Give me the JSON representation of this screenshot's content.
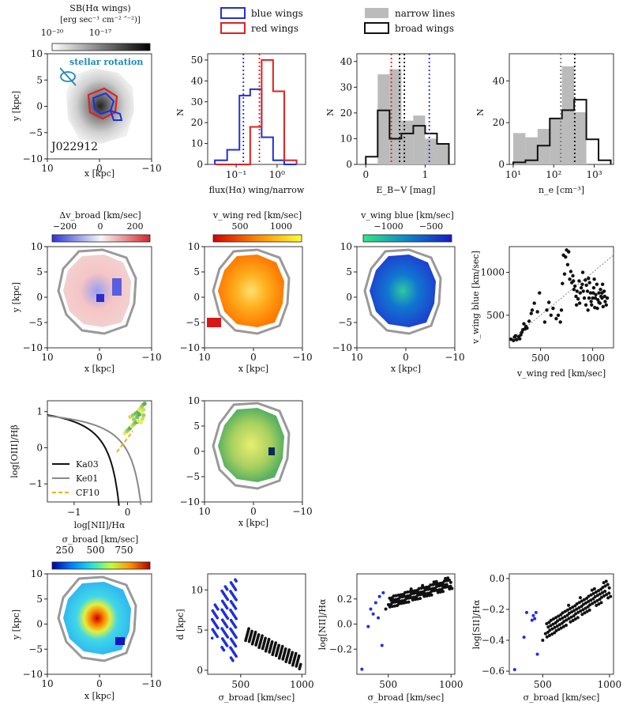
{
  "chart_data": {
    "type": "multi-panel",
    "legends": [
      {
        "label": "blue wings",
        "color": "#1f2fdd"
      },
      {
        "label": "red wings",
        "color": "#e02020"
      },
      {
        "label": "narrow lines",
        "color": "#bbbbbb"
      },
      {
        "label": "broad wings",
        "color": "#111111"
      }
    ],
    "colorbars": {
      "sb": {
        "title1": "SB(Hα wings)",
        "title2": "[erg sec⁻¹ cm⁻² ″⁻²)]",
        "ticks": [
          "10⁻²⁰",
          "10⁻¹⁷"
        ]
      },
      "dv": {
        "title": "Δv_broad [km/sec]",
        "ticks": [
          "−200",
          "0",
          "200"
        ]
      },
      "vred": {
        "title": "v_wing red [km/sec]",
        "ticks": [
          "500",
          "1000"
        ]
      },
      "vblue": {
        "title": "v_wing blue [km/sec]",
        "ticks": [
          "−1000",
          "−500"
        ]
      },
      "sigma": {
        "title": "σ_broad [km/sec]",
        "ticks": [
          "250",
          "500",
          "750"
        ]
      }
    },
    "labels": {
      "x_kpc": "x [kpc]",
      "y_kpc": "y [kpc]",
      "stellar_rotation": "stellar rotation",
      "galaxy_id": "J022912",
      "N": "N",
      "flux_ratio": "flux(Hα) wing/narrow",
      "ebv": "E_B−V [mag]",
      "ne": "n_e [cm⁻³]",
      "vblue_axis": "v_wing blue [km/sec]",
      "vred_axis": "v_wing red [km/sec]",
      "bpt_y": "log[OIII]/Hβ",
      "bpt_x": "log[NII]/Hα",
      "sigma_axis": "σ_broad [km/sec]",
      "d_axis": "d [kpc]",
      "nii_axis": "log[NII]/Hα",
      "sii_axis": "log[SII]/Hα"
    },
    "map_ticks": {
      "x": [
        "10",
        "0",
        "−10"
      ],
      "y": [
        "10",
        "5",
        "0",
        "−5",
        "−10"
      ]
    },
    "hist_flux": {
      "xscale": "log",
      "xlim": [
        0.02,
        5
      ],
      "ylim": [
        0,
        53
      ],
      "xticks": [
        "10⁻¹",
        "10⁰"
      ],
      "yticks": [
        "0",
        "10",
        "20",
        "30",
        "40",
        "50"
      ],
      "edges": [
        0.03,
        0.06,
        0.12,
        0.22,
        0.42,
        0.8,
        1.5,
        3.0
      ],
      "blue": [
        2,
        7,
        33,
        36,
        13,
        2,
        0
      ],
      "red": [
        0,
        0,
        0,
        18,
        50,
        35,
        2
      ],
      "vlines": [
        {
          "x": 0.15,
          "color": "blue"
        },
        {
          "x": 0.37,
          "color": "red"
        }
      ]
    },
    "hist_ebv": {
      "xlim": [
        -0.15,
        1.5
      ],
      "ylim": [
        0,
        43
      ],
      "xticks": [
        "0",
        "1"
      ],
      "yticks": [
        "0",
        "10",
        "20",
        "30",
        "40"
      ],
      "edges": [
        0,
        0.2,
        0.4,
        0.6,
        0.8,
        1.0,
        1.2,
        1.4
      ],
      "narrow": [
        0,
        35,
        37,
        17,
        19,
        10,
        8
      ],
      "broad": [
        3,
        21,
        10,
        12,
        15,
        12,
        8
      ],
      "vlines": [
        {
          "x": 0.43,
          "color": "red"
        },
        {
          "x": 0.57,
          "color": "black"
        },
        {
          "x": 0.65,
          "color": "black"
        },
        {
          "x": 1.07,
          "color": "blue"
        }
      ]
    },
    "hist_ne": {
      "xscale": "log",
      "xlim": [
        8,
        3000
      ],
      "ylim": [
        0,
        53
      ],
      "xticks": [
        "10¹",
        "10²",
        "10³"
      ],
      "yticks": [
        "0",
        "20",
        "40"
      ],
      "edges": [
        10,
        20,
        40,
        80,
        160,
        320,
        640,
        1280,
        2560
      ],
      "narrow": [
        15,
        13,
        17,
        22,
        47,
        25,
        0,
        0
      ],
      "broad": [
        1,
        2,
        9,
        22,
        26,
        31,
        12,
        2
      ],
      "vlines": [
        {
          "x": 150,
          "color": "grey"
        },
        {
          "x": 330,
          "color": "black"
        }
      ]
    },
    "scatter_v": {
      "xlim": [
        200,
        1200
      ],
      "ylim": [
        120,
        1300
      ],
      "xticks": [
        "500",
        "1000"
      ],
      "yticks": [
        "500",
        "1000"
      ],
      "points": [
        [
          215,
          220
        ],
        [
          240,
          205
        ],
        [
          250,
          245
        ],
        [
          260,
          260
        ],
        [
          270,
          215
        ],
        [
          290,
          250
        ],
        [
          300,
          225
        ],
        [
          310,
          270
        ],
        [
          320,
          300
        ],
        [
          330,
          330
        ],
        [
          340,
          400
        ],
        [
          350,
          340
        ],
        [
          360,
          370
        ],
        [
          370,
          350
        ],
        [
          390,
          430
        ],
        [
          410,
          520
        ],
        [
          420,
          560
        ],
        [
          440,
          640
        ],
        [
          470,
          540
        ],
        [
          490,
          760
        ],
        [
          540,
          420
        ],
        [
          560,
          560
        ],
        [
          580,
          650
        ],
        [
          600,
          500
        ],
        [
          620,
          580
        ],
        [
          650,
          460
        ],
        [
          670,
          500
        ],
        [
          690,
          420
        ],
        [
          700,
          560
        ],
        [
          710,
          870
        ],
        [
          720,
          1200
        ],
        [
          730,
          980
        ],
        [
          740,
          1180
        ],
        [
          750,
          1260
        ],
        [
          760,
          1090
        ],
        [
          770,
          1240
        ],
        [
          780,
          920
        ],
        [
          790,
          1010
        ],
        [
          800,
          880
        ],
        [
          810,
          960
        ],
        [
          820,
          800
        ],
        [
          830,
          840
        ],
        [
          840,
          720
        ],
        [
          850,
          780
        ],
        [
          860,
          690
        ],
        [
          870,
          900
        ],
        [
          880,
          760
        ],
        [
          890,
          820
        ],
        [
          900,
          860
        ],
        [
          910,
          780
        ],
        [
          920,
          700
        ],
        [
          930,
          910
        ],
        [
          940,
          850
        ],
        [
          950,
          780
        ],
        [
          960,
          930
        ],
        [
          970,
          880
        ],
        [
          980,
          760
        ],
        [
          990,
          620
        ],
        [
          1000,
          700
        ],
        [
          1010,
          820
        ],
        [
          1020,
          590
        ],
        [
          1030,
          740
        ],
        [
          1040,
          860
        ],
        [
          1050,
          680
        ],
        [
          1060,
          760
        ],
        [
          1070,
          640
        ],
        [
          1080,
          720
        ],
        [
          1090,
          700
        ],
        [
          1100,
          600
        ],
        [
          1110,
          780
        ],
        [
          1120,
          660
        ],
        [
          1130,
          620
        ],
        [
          1140,
          700
        ],
        [
          905,
          1000
        ],
        [
          935,
          620
        ],
        [
          965,
          700
        ],
        [
          1015,
          920
        ],
        [
          1045,
          580
        ],
        [
          1075,
          800
        ],
        [
          1095,
          860
        ],
        [
          985,
          660
        ],
        [
          955,
          560
        ],
        [
          875,
          640
        ],
        [
          845,
          620
        ],
        [
          815,
          900
        ],
        [
          1005,
          760
        ],
        [
          1025,
          700
        ],
        [
          1060,
          650
        ],
        [
          1090,
          760
        ],
        [
          1115,
          720
        ]
      ]
    },
    "bpt": {
      "xlim": [
        -1.5,
        0.45
      ],
      "ylim": [
        -1.5,
        1.3
      ],
      "xticks": [
        "−1",
        "0"
      ],
      "yticks": [
        "−1",
        "0",
        "1"
      ],
      "curves": [
        "Ka03",
        "Ke01",
        "CF10"
      ],
      "points": [
        [
          -0.05,
          0.4
        ],
        [
          -0.02,
          0.45
        ],
        [
          0.0,
          0.48
        ],
        [
          0.03,
          0.52
        ],
        [
          0.05,
          0.55
        ],
        [
          0.08,
          0.6
        ],
        [
          0.1,
          0.62
        ],
        [
          0.12,
          0.66
        ],
        [
          0.15,
          0.7
        ],
        [
          0.18,
          0.72
        ],
        [
          0.2,
          0.75
        ],
        [
          0.05,
          0.85
        ],
        [
          0.1,
          0.9
        ],
        [
          0.15,
          0.95
        ],
        [
          0.2,
          1.0
        ],
        [
          0.22,
          1.05
        ],
        [
          0.25,
          1.1
        ],
        [
          0.27,
          1.15
        ],
        [
          0.3,
          1.2
        ],
        [
          0.32,
          1.22
        ],
        [
          0.25,
          0.7
        ],
        [
          0.28,
          0.8
        ],
        [
          0.3,
          0.9
        ],
        [
          0.18,
          0.85
        ],
        [
          0.22,
          0.92
        ],
        [
          0.26,
          1.0
        ],
        [
          0.3,
          1.05
        ],
        [
          0.12,
          0.78
        ]
      ]
    },
    "sc_sigma_d": {
      "xlim": [
        230,
        1030
      ],
      "ylim": [
        -0.5,
        12
      ],
      "xticks": [
        "500",
        "1000"
      ],
      "yticks": [
        "0",
        "5",
        "10"
      ],
      "blue_columns": [
        [
          290,
          4.0,
          8.2
        ],
        [
          370,
          2.5,
          10.5
        ],
        [
          440,
          1.2,
          11.4
        ]
      ],
      "black_cloud": {
        "x0": 540,
        "x1": 990,
        "d_start": 4.6,
        "d_end": 1.0
      }
    },
    "sc_nii": {
      "xlim": [
        250,
        1030
      ],
      "ylim": [
        -0.4,
        0.4
      ],
      "xticks": [
        "500",
        "1000"
      ],
      "yticks": [
        "−0.2",
        "0.0",
        "0.2"
      ],
      "blue": [
        [
          290,
          -0.36
        ],
        [
          340,
          -0.02
        ],
        [
          360,
          0.12
        ],
        [
          380,
          0.08
        ],
        [
          400,
          0.17
        ],
        [
          420,
          0.05
        ],
        [
          430,
          0.22
        ],
        [
          450,
          -0.17
        ],
        [
          460,
          0.25
        ]
      ],
      "black_trend": {
        "x0": 500,
        "x1": 1000,
        "y0": 0.17,
        "y1": 0.33,
        "scatter": 0.05
      }
    },
    "sc_sii": {
      "xlim": [
        250,
        1030
      ],
      "ylim": [
        -0.62,
        0.03
      ],
      "xticks": [
        "500",
        "1000"
      ],
      "yticks": [
        "−0.6",
        "−0.4",
        "−0.2",
        "0.0"
      ],
      "blue": [
        [
          290,
          -0.59
        ],
        [
          360,
          -0.38
        ],
        [
          380,
          -0.22
        ],
        [
          420,
          -0.27
        ],
        [
          430,
          -0.24
        ],
        [
          440,
          -0.26
        ],
        [
          460,
          -0.49
        ],
        [
          450,
          -0.22
        ]
      ],
      "black_trend": {
        "x0": 520,
        "x1": 1000,
        "y0": -0.34,
        "y1": -0.06,
        "scatter": 0.06
      }
    }
  }
}
